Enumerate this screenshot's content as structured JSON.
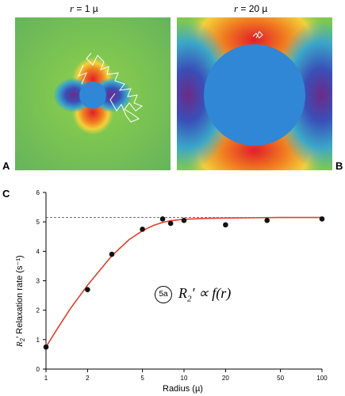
{
  "panels": {
    "a": {
      "letter": "A",
      "title_var": "r",
      "title_rest": " = 1 µ"
    },
    "b": {
      "letter": "B",
      "title_var": "r",
      "title_rest": " = 20 µ"
    },
    "c": {
      "letter": "C"
    }
  },
  "colors": {
    "field_bg": "#7ec850",
    "sphere": "#2f87d6",
    "hot": "#e8202a",
    "cold": "#7a2a8a",
    "curve": "#e0402a",
    "points": "#111111"
  },
  "chart_data": {
    "type": "scatter",
    "xlabel": "Radius (µ)",
    "ylabel_main": "R",
    "ylabel_sub": "2",
    "ylabel_rest": "′ Relaxation rate (s⁻¹)",
    "x_scale": "log",
    "xlim": [
      1,
      100
    ],
    "ylim": [
      0,
      6
    ],
    "x_ticks": [
      1,
      2,
      5,
      10,
      20,
      50,
      100
    ],
    "y_ticks": [
      0,
      1,
      2,
      3,
      4,
      5,
      6
    ],
    "x": [
      1,
      2,
      3,
      5,
      7,
      8,
      10,
      20,
      40,
      100
    ],
    "y": [
      0.75,
      2.7,
      3.9,
      4.75,
      5.1,
      4.95,
      5.05,
      4.9,
      5.05,
      5.1
    ],
    "plateau": 5.15,
    "fit_curve": {
      "x": [
        1,
        1.2,
        1.5,
        2,
        2.5,
        3,
        4,
        5,
        6,
        7,
        8,
        10,
        15,
        20,
        30,
        50,
        100
      ],
      "y": [
        0.75,
        1.35,
        2.05,
        2.85,
        3.4,
        3.85,
        4.4,
        4.7,
        4.88,
        4.98,
        5.04,
        5.09,
        5.12,
        5.13,
        5.14,
        5.15,
        5.15
      ]
    },
    "annotation": {
      "badge": "5a",
      "formula_main": "R",
      "formula_sub": "2",
      "formula_rest": "′ ∝ f(r)"
    }
  }
}
